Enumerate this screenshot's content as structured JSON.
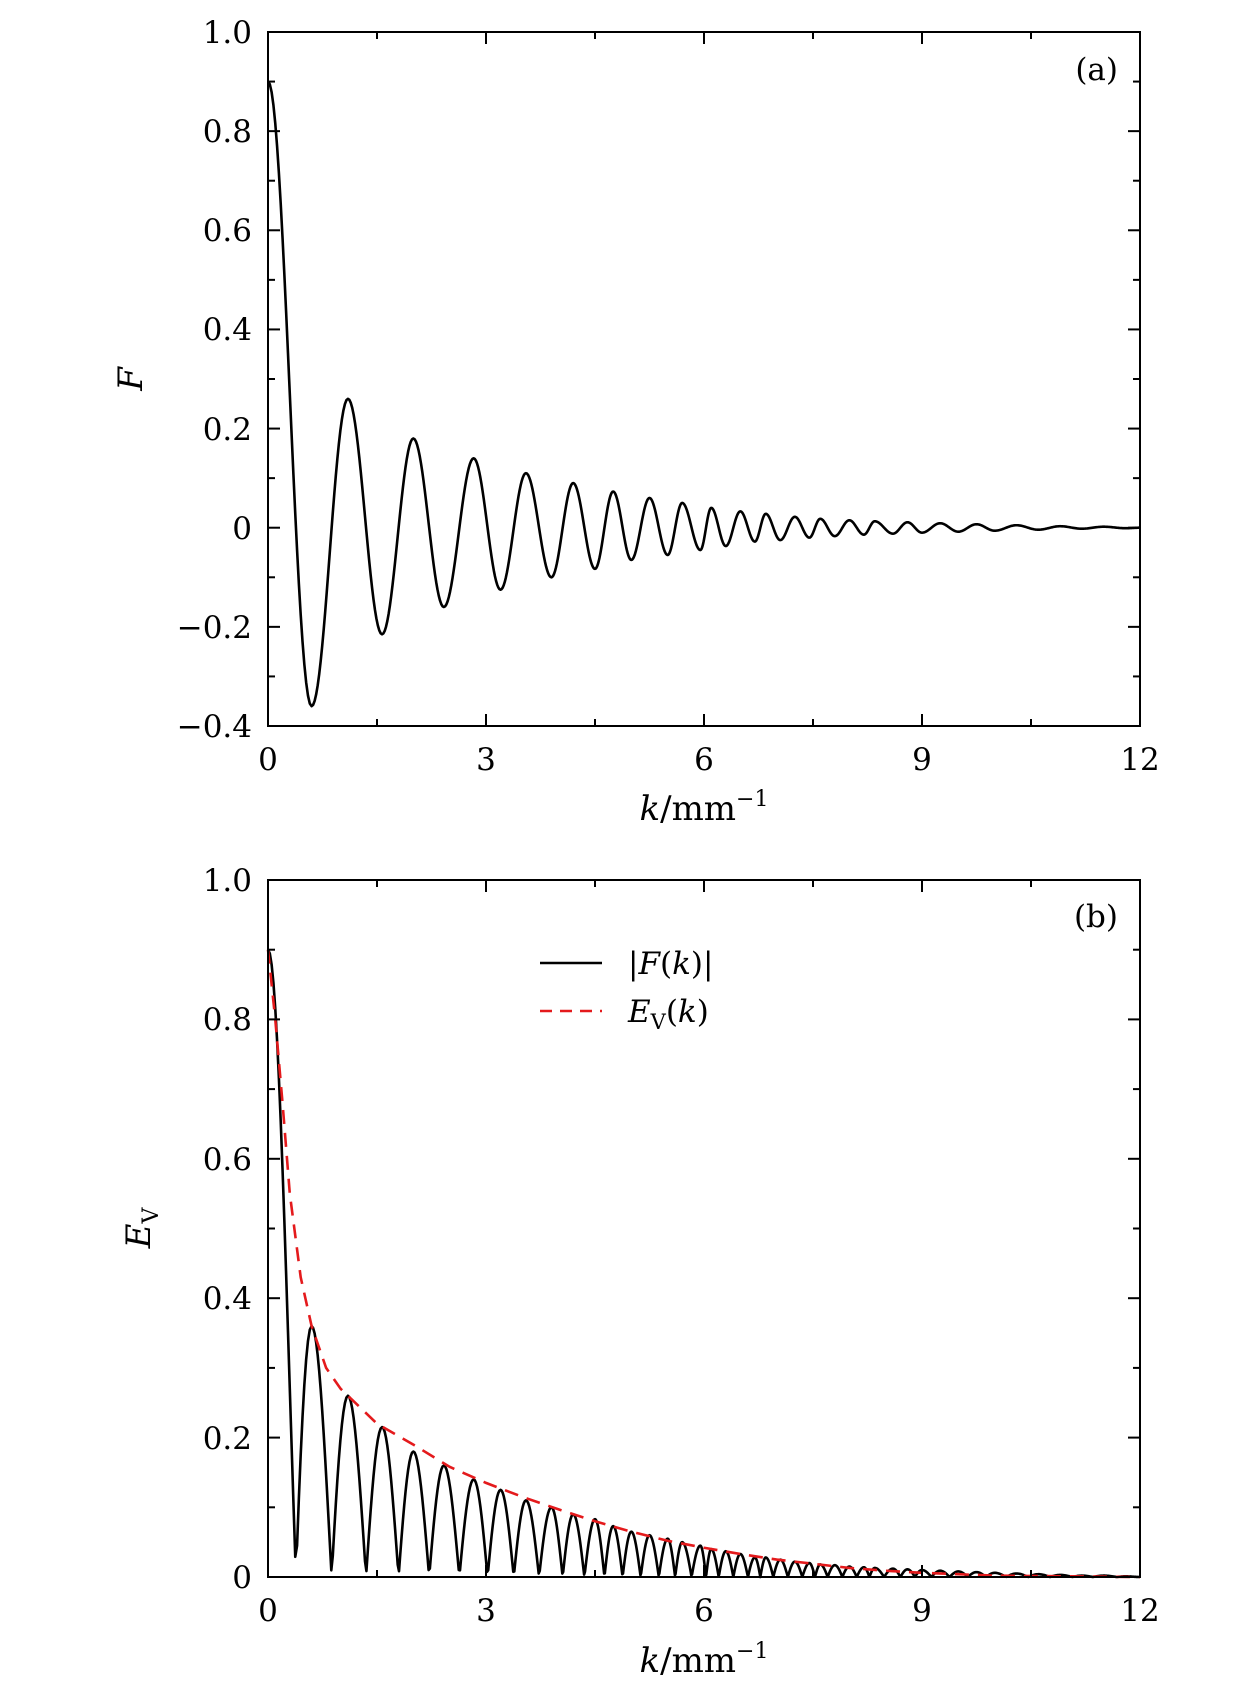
{
  "chart_data": [
    {
      "type": "line",
      "panel_label": "(a)",
      "xlabel": {
        "var": "k",
        "rest": "/mm",
        "sup": "−1"
      },
      "ylabel": "F",
      "xlim": [
        0,
        12
      ],
      "ylim": [
        -0.4,
        1.0
      ],
      "xticks": [
        0,
        3,
        6,
        9,
        12
      ],
      "xtick_labels": [
        "0",
        "3",
        "6",
        "9",
        "12"
      ],
      "yticks": [
        -0.4,
        -0.2,
        0,
        0.2,
        0.4,
        0.6,
        0.8,
        1.0
      ],
      "ytick_labels": [
        "−0.4",
        "−0.2",
        "0",
        "0.2",
        "0.4",
        "0.6",
        "0.8",
        "1.0"
      ],
      "grid": false,
      "series": [
        {
          "color": "#000000",
          "dash": "solid",
          "description": "damped oscillation F(k); extrema listed as [k, F]",
          "extrema": [
            [
              0,
              0.9
            ],
            [
              0.6,
              -0.36
            ],
            [
              1.1,
              0.26
            ],
            [
              1.57,
              -0.215
            ],
            [
              2.0,
              0.18
            ],
            [
              2.42,
              -0.16
            ],
            [
              2.83,
              0.14
            ],
            [
              3.2,
              -0.125
            ],
            [
              3.55,
              0.11
            ],
            [
              3.9,
              -0.1
            ],
            [
              4.2,
              0.09
            ],
            [
              4.5,
              -0.083
            ],
            [
              4.75,
              0.073
            ],
            [
              5.0,
              -0.065
            ],
            [
              5.25,
              0.06
            ],
            [
              5.5,
              -0.055
            ],
            [
              5.7,
              0.05
            ],
            [
              5.95,
              -0.045
            ],
            [
              6.1,
              0.04
            ],
            [
              6.3,
              -0.037
            ],
            [
              6.5,
              0.033
            ],
            [
              6.7,
              -0.028
            ],
            [
              6.85,
              0.028
            ],
            [
              7.05,
              -0.025
            ],
            [
              7.25,
              0.022
            ],
            [
              7.45,
              -0.02
            ],
            [
              7.6,
              0.018
            ],
            [
              7.8,
              -0.017
            ],
            [
              8.0,
              0.015
            ],
            [
              8.2,
              -0.014
            ],
            [
              8.35,
              0.013
            ],
            [
              8.6,
              -0.012
            ],
            [
              8.8,
              0.011
            ],
            [
              9.0,
              -0.01
            ],
            [
              9.25,
              0.009
            ],
            [
              9.5,
              -0.008
            ],
            [
              9.75,
              0.007
            ],
            [
              10.0,
              -0.006
            ],
            [
              10.3,
              0.005
            ],
            [
              10.6,
              -0.004
            ],
            [
              10.9,
              0.003
            ],
            [
              11.2,
              -0.002
            ],
            [
              11.5,
              0.002
            ],
            [
              11.8,
              -0.001
            ],
            [
              12.0,
              0
            ]
          ]
        }
      ]
    },
    {
      "type": "line",
      "panel_label": "(b)",
      "xlabel": {
        "var": "k",
        "rest": "/mm",
        "sup": "−1"
      },
      "ylabel": {
        "var": "E",
        "sub": "V"
      },
      "xlim": [
        0,
        12
      ],
      "ylim": [
        0,
        1.0
      ],
      "xticks": [
        0,
        3,
        6,
        9,
        12
      ],
      "xtick_labels": [
        "0",
        "3",
        "6",
        "9",
        "12"
      ],
      "yticks": [
        0,
        0.2,
        0.4,
        0.6,
        0.8,
        1.0
      ],
      "ytick_labels": [
        "0",
        "0.2",
        "0.4",
        "0.6",
        "0.8",
        "1.0"
      ],
      "grid": false,
      "legend": {
        "position": "top-center",
        "entries": [
          {
            "label": "|F(k)|",
            "color": "#000000",
            "dash": "solid"
          },
          {
            "label": "E_V(k)",
            "color": "#e41a1c",
            "dash": "dashed"
          }
        ]
      },
      "series": [
        {
          "name": "|F(k)|",
          "color": "#000000",
          "dash": "solid",
          "description": "absolute value of F(k); arch peaks as [k, |F|] with zeros between successive peaks",
          "source": "abs of panel (a) extrema"
        },
        {
          "name": "E_V(k)",
          "color": "#e41a1c",
          "dash": "dashed",
          "points": [
            [
              0,
              0.9
            ],
            [
              0.1,
              0.8
            ],
            [
              0.2,
              0.68
            ],
            [
              0.3,
              0.55
            ],
            [
              0.45,
              0.43
            ],
            [
              0.6,
              0.36
            ],
            [
              0.8,
              0.3
            ],
            [
              1.0,
              0.27
            ],
            [
              1.5,
              0.22
            ],
            [
              2.0,
              0.19
            ],
            [
              2.5,
              0.158
            ],
            [
              3.0,
              0.135
            ],
            [
              3.5,
              0.115
            ],
            [
              4.0,
              0.097
            ],
            [
              4.5,
              0.08
            ],
            [
              5.0,
              0.065
            ],
            [
              5.5,
              0.052
            ],
            [
              6.0,
              0.042
            ],
            [
              6.5,
              0.033
            ],
            [
              7.0,
              0.025
            ],
            [
              7.5,
              0.019
            ],
            [
              8.0,
              0.013
            ],
            [
              8.5,
              0.009
            ],
            [
              9.0,
              0.006
            ],
            [
              9.5,
              0.004
            ],
            [
              10.0,
              0.002
            ],
            [
              11.0,
              0.001
            ],
            [
              12.0,
              0.0
            ]
          ]
        }
      ]
    }
  ]
}
